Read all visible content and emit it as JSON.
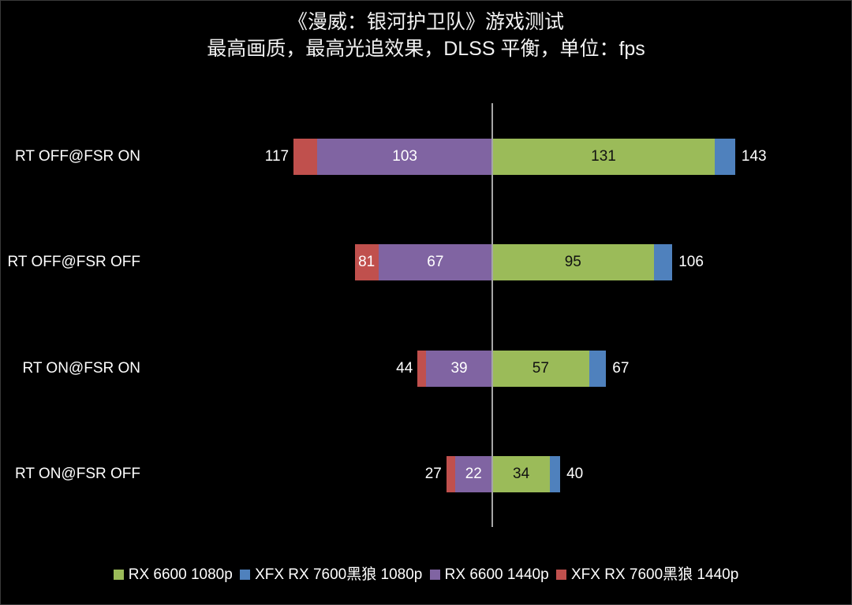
{
  "chart_data": {
    "type": "bar",
    "orientation": "horizontal",
    "layout": "diverging-stacked",
    "title": "《漫威：银河护卫队》游戏测试",
    "subtitle": "最高画质，最高光追效果，DLSS 平衡，单位：fps",
    "xlabel": "",
    "ylabel": "",
    "grid": false,
    "legend_position": "bottom",
    "categories": [
      "RT OFF@FSR ON",
      "RT OFF@FSR OFF",
      "RT ON@FSR ON",
      "RT ON@FSR OFF"
    ],
    "series": [
      {
        "name": "RX 6600 1080p",
        "color": "#9bbb59",
        "side": "right",
        "values": [
          131,
          95,
          57,
          34
        ]
      },
      {
        "name": "XFX RX 7600黑狼 1080p",
        "color": "#4f81bd",
        "side": "right",
        "values": [
          143,
          106,
          67,
          40
        ]
      },
      {
        "name": "RX 6600 1440p",
        "color": "#8064a2",
        "side": "left",
        "values": [
          103,
          67,
          39,
          22
        ]
      },
      {
        "name": "XFX RX 7600黑狼 1440p",
        "color": "#c0504d",
        "side": "left",
        "values": [
          117,
          81,
          44,
          27
        ]
      }
    ]
  },
  "title": {
    "line1": "《漫威：银河护卫队》游戏测试",
    "line2": "最高画质，最高光追效果，DLSS 平衡，单位：fps"
  },
  "rows": [
    {
      "label": "RT OFF@FSR ON",
      "rx6600_1080": "131",
      "rx7600_1080": "143",
      "rx6600_1440": "103",
      "rx7600_1440": "117"
    },
    {
      "label": "RT OFF@FSR OFF",
      "rx6600_1080": "95",
      "rx7600_1080": "106",
      "rx6600_1440": "67",
      "rx7600_1440": "81"
    },
    {
      "label": "RT ON@FSR ON",
      "rx6600_1080": "57",
      "rx7600_1080": "67",
      "rx6600_1440": "39",
      "rx7600_1440": "44"
    },
    {
      "label": "RT ON@FSR OFF",
      "rx6600_1080": "34",
      "rx7600_1080": "40",
      "rx6600_1440": "22",
      "rx7600_1440": "27"
    }
  ],
  "legend": [
    {
      "label": "RX 6600 1080p",
      "color": "#9bbb59"
    },
    {
      "label": "XFX RX 7600黑狼 1080p",
      "color": "#4f81bd"
    },
    {
      "label": "RX 6600 1440p",
      "color": "#8064a2"
    },
    {
      "label": "XFX RX 7600黑狼 1440p",
      "color": "#c0504d"
    }
  ]
}
